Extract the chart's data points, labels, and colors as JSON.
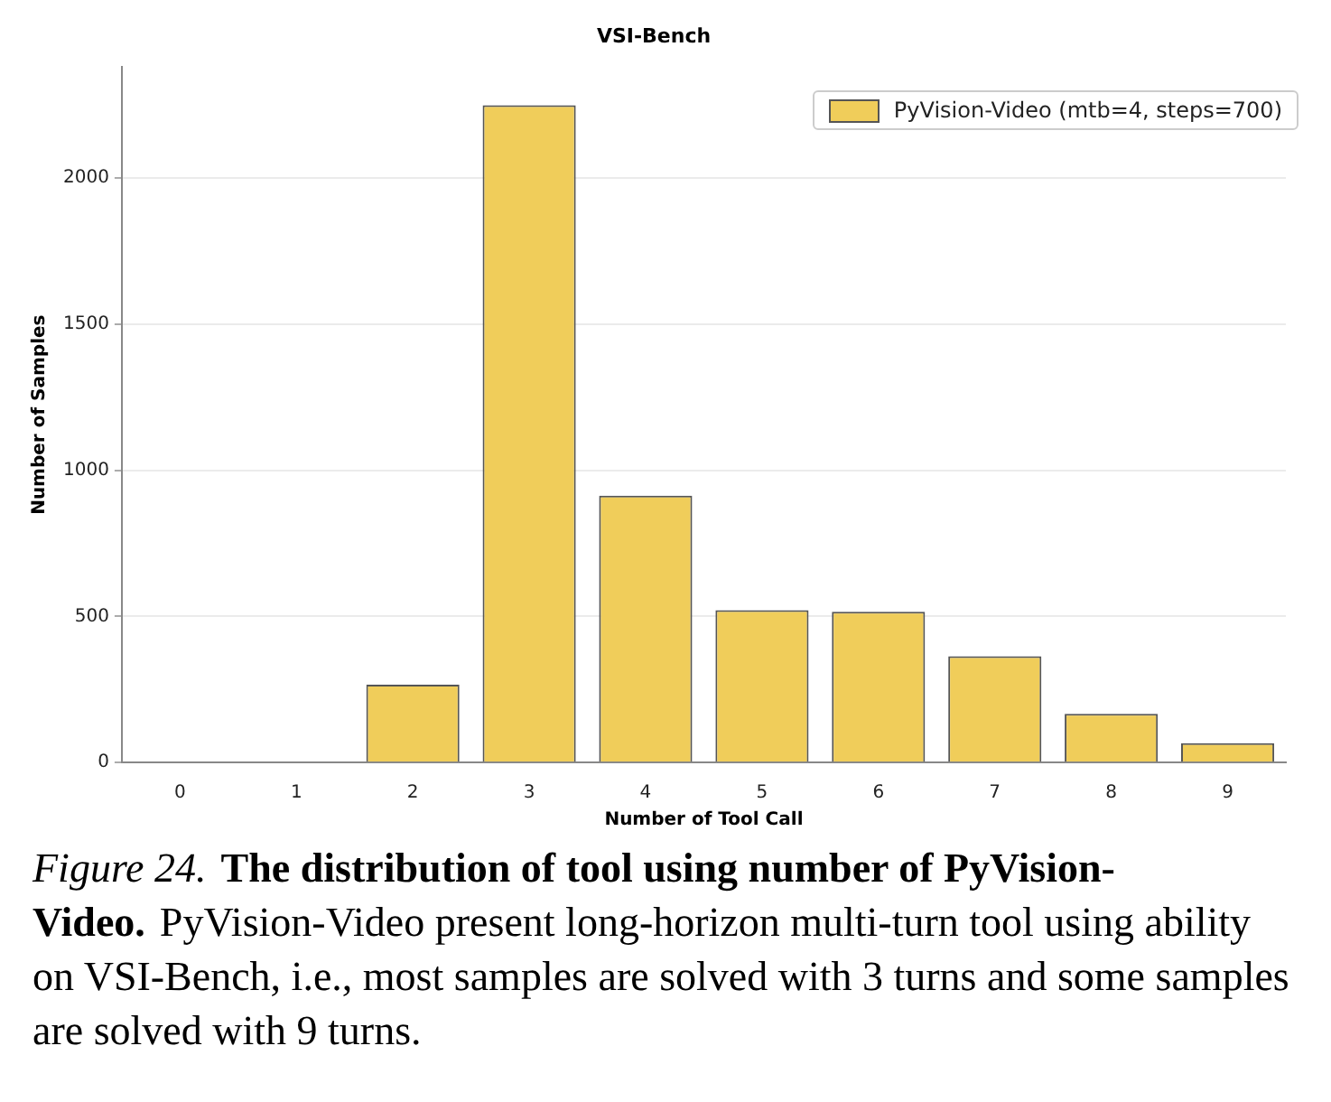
{
  "chart_data": {
    "type": "bar",
    "title": "VSI-Bench",
    "xlabel": "Number of Tool Call",
    "ylabel": "Number of Samples",
    "categories": [
      "0",
      "1",
      "2",
      "3",
      "4",
      "5",
      "6",
      "7",
      "8",
      "9"
    ],
    "series": [
      {
        "name": "PyVision-Video (mtb=4, steps=700)",
        "color": "#f0cd5a",
        "values": [
          0,
          2,
          266,
          2250,
          913,
          521,
          516,
          363,
          166,
          66
        ]
      }
    ],
    "ylim": [
      0,
      2380
    ],
    "yticks": [
      0,
      500,
      1000,
      1500,
      2000
    ],
    "grid": "y",
    "legend": "top right",
    "annotations": [
      "Figure 24.",
      "The distribution of tool using number of PyVision-Video.",
      "PyVision-Video present long-horizon multi-turn tool using ability on VSI-Bench, i.e., most samples are solved with 3 turns and some samples are solved with 9 turns."
    ]
  }
}
